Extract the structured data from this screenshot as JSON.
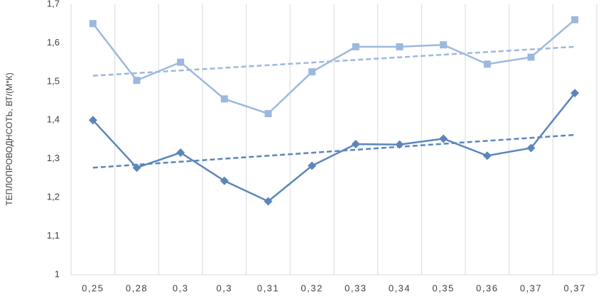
{
  "chart_data": {
    "type": "line",
    "y_label": "ТЕПЛОПРОВОДНСОТЬ, ВТ/(М*К)",
    "categories": [
      "0,25",
      "0,28",
      "0,3",
      "0,3",
      "0,31",
      "0,32",
      "0,33",
      "0,34",
      "0,35",
      "0,36",
      "0,37",
      "0,37"
    ],
    "series": [
      {
        "color": "#9db8de",
        "marker": "square",
        "trend": [
          1.515,
          1.59
        ],
        "values": [
          1.65,
          1.503,
          1.55,
          1.455,
          1.417,
          1.525,
          1.59,
          1.59,
          1.595,
          1.545,
          1.563,
          1.66
        ]
      },
      {
        "color": "#5a86bb",
        "marker": "diamond",
        "trend": [
          1.277,
          1.362
        ],
        "values": [
          1.4,
          1.277,
          1.316,
          1.243,
          1.19,
          1.282,
          1.338,
          1.337,
          1.352,
          1.308,
          1.328,
          1.47
        ]
      }
    ],
    "ylim": [
      1,
      1.7
    ],
    "yticks": [
      1,
      {
        "value": 1.1,
        "label": "1,1"
      },
      {
        "value": 1.2,
        "label": "1,2"
      },
      {
        "value": 1.3,
        "label": "1,3"
      },
      {
        "value": 1.4,
        "label": "1,4"
      },
      {
        "value": 1.5,
        "label": "1,5"
      },
      {
        "value": 1.6,
        "label": "1,6"
      },
      {
        "value": 1.7,
        "label": "1,7"
      }
    ]
  }
}
